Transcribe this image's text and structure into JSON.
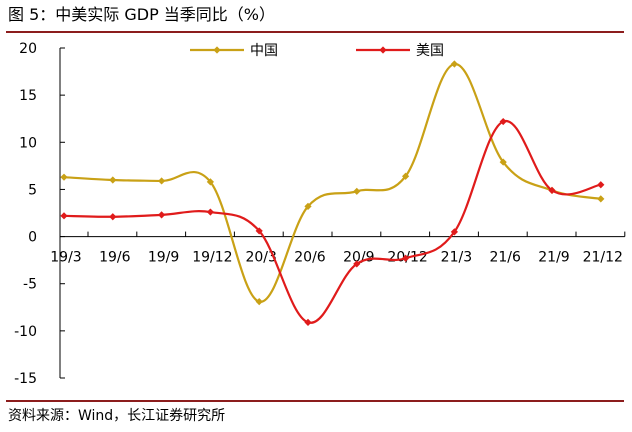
{
  "title": "图 5：中美实际 GDP 当季同比（%）",
  "source": "资料来源：Wind，长江证券研究所",
  "colors": {
    "china": "#C9A116",
    "usa": "#E01B1B",
    "rule": "#8C1D1D",
    "axis": "#000000"
  },
  "chart_data": {
    "type": "line",
    "title": "中美实际 GDP 当季同比（%）",
    "xlabel": "",
    "ylabel": "",
    "ylim": [
      -15,
      20
    ],
    "yticks": [
      20,
      15,
      10,
      5,
      0,
      -5,
      -10,
      -15
    ],
    "categories": [
      "19/3",
      "19/6",
      "19/9",
      "19/12",
      "20/3",
      "20/6",
      "20/9",
      "20/12",
      "21/3",
      "21/6",
      "21/9",
      "21/12"
    ],
    "series": [
      {
        "name": "中国",
        "color": "#C9A116",
        "values": [
          6.3,
          6.0,
          5.9,
          5.8,
          -6.9,
          3.2,
          4.8,
          6.4,
          18.3,
          7.9,
          4.9,
          4.0
        ]
      },
      {
        "name": "美国",
        "color": "#E01B1B",
        "values": [
          2.2,
          2.1,
          2.3,
          2.6,
          0.6,
          -9.1,
          -2.9,
          -2.3,
          0.5,
          12.2,
          4.9,
          5.5
        ]
      }
    ],
    "legend_position": "top-center",
    "smooth": true
  }
}
